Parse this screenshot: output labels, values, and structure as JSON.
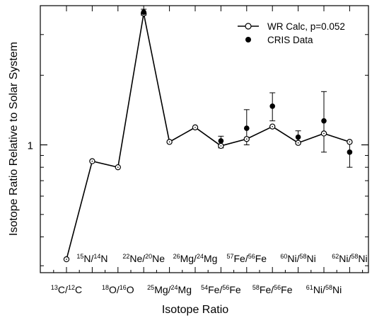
{
  "chart_data": {
    "type": "scatter",
    "xlabel": "Isotope Ratio",
    "ylabel": "Isotope Ratio Relative to Solar System",
    "yscale": "log",
    "ylim": [
      0.28,
      4.0
    ],
    "y_tick_labels": [
      {
        "value": 1,
        "label": "1"
      }
    ],
    "grid": false,
    "legend_position": "top-right",
    "categories": [
      {
        "num": "13",
        "num_el": "C",
        "den": "12",
        "den_el": "C",
        "row": "low"
      },
      {
        "num": "15",
        "num_el": "N",
        "den": "14",
        "den_el": "N",
        "row": "high"
      },
      {
        "num": "18",
        "num_el": "O",
        "den": "16",
        "den_el": "O",
        "row": "low"
      },
      {
        "num": "22",
        "num_el": "Ne",
        "den": "20",
        "den_el": "Ne",
        "row": "high"
      },
      {
        "num": "25",
        "num_el": "Mg",
        "den": "24",
        "den_el": "Mg",
        "row": "low"
      },
      {
        "num": "26",
        "num_el": "Mg",
        "den": "24",
        "den_el": "Mg",
        "row": "high"
      },
      {
        "num": "54",
        "num_el": "Fe",
        "den": "56",
        "den_el": "Fe",
        "row": "low"
      },
      {
        "num": "57",
        "num_el": "Fe",
        "den": "56",
        "den_el": "Fe",
        "row": "high"
      },
      {
        "num": "58",
        "num_el": "Fe",
        "den": "56",
        "den_el": "Fe",
        "row": "low"
      },
      {
        "num": "60",
        "num_el": "Ni",
        "den": "58",
        "den_el": "Ni",
        "row": "high"
      },
      {
        "num": "61",
        "num_el": "Ni",
        "den": "58",
        "den_el": "Ni",
        "row": "low"
      },
      {
        "num": "62",
        "num_el": "Ni",
        "den": "58",
        "den_el": "Ni",
        "row": "high"
      }
    ],
    "series": [
      {
        "name": "WR Calc, p=0.052",
        "style": "line-open-circle",
        "values": [
          0.32,
          0.85,
          0.8,
          3.7,
          1.03,
          1.19,
          0.99,
          1.06,
          1.2,
          1.02,
          1.12,
          1.03
        ]
      },
      {
        "name": "CRIS Data",
        "style": "filled-circle-errorbars",
        "points": [
          {
            "x": 3,
            "y": 3.75,
            "err_low": 3.64,
            "err_high": 3.86
          },
          {
            "x": 6,
            "y": 1.04,
            "err_low": 0.97,
            "err_high": 1.09
          },
          {
            "x": 7,
            "y": 1.18,
            "err_low": 1.0,
            "err_high": 1.42
          },
          {
            "x": 8,
            "y": 1.47,
            "err_low": 1.27,
            "err_high": 1.68
          },
          {
            "x": 9,
            "y": 1.08,
            "err_low": 1.01,
            "err_high": 1.15
          },
          {
            "x": 10,
            "y": 1.27,
            "err_low": 0.93,
            "err_high": 1.7
          },
          {
            "x": 11,
            "y": 0.93,
            "err_low": 0.8,
            "err_high": 1.03
          }
        ]
      }
    ]
  }
}
